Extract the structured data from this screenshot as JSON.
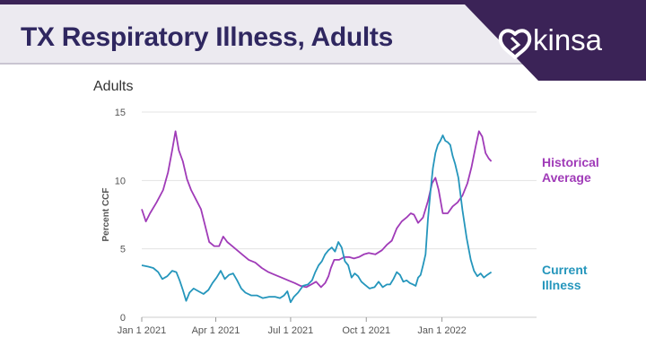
{
  "header": {
    "title": "TX Respiratory Illness, Adults",
    "brand": "kinsa"
  },
  "colors": {
    "historical": "#a03bb8",
    "current": "#2596bc",
    "title_text": "#2f2760",
    "brand_bg": "#3b2357"
  },
  "chart_data": {
    "type": "line",
    "title": "Adults",
    "xlabel": "",
    "ylabel": "Percent CCF",
    "ylim": [
      0,
      15
    ],
    "yticks": [
      0,
      5,
      10,
      15
    ],
    "xlim": [
      0,
      480
    ],
    "xticks": [
      {
        "day": 0,
        "label": "Jan 1 2021"
      },
      {
        "day": 90,
        "label": "Apr 1 2021"
      },
      {
        "day": 181,
        "label": "Jul 1 2021"
      },
      {
        "day": 273,
        "label": "Oct 1 2021"
      },
      {
        "day": 365,
        "label": "Jan 1 2022"
      }
    ],
    "grid": true,
    "series": [
      {
        "name": "Historical Average",
        "label_lines": [
          "Historical",
          "Average"
        ],
        "points": [
          [
            0,
            7.9
          ],
          [
            5,
            7
          ],
          [
            10,
            7.6
          ],
          [
            18,
            8.4
          ],
          [
            26,
            9.3
          ],
          [
            32,
            10.6
          ],
          [
            37,
            12.2
          ],
          [
            41,
            13.6
          ],
          [
            45,
            12.2
          ],
          [
            50,
            11.4
          ],
          [
            55,
            10.1
          ],
          [
            60,
            9.3
          ],
          [
            66,
            8.6
          ],
          [
            72,
            7.9
          ],
          [
            77,
            6.7
          ],
          [
            82,
            5.5
          ],
          [
            88,
            5.2
          ],
          [
            94,
            5.2
          ],
          [
            99,
            5.9
          ],
          [
            104,
            5.5
          ],
          [
            110,
            5.2
          ],
          [
            116,
            4.9
          ],
          [
            122,
            4.6
          ],
          [
            130,
            4.2
          ],
          [
            138,
            4.0
          ],
          [
            146,
            3.6
          ],
          [
            154,
            3.3
          ],
          [
            162,
            3.1
          ],
          [
            170,
            2.9
          ],
          [
            178,
            2.7
          ],
          [
            186,
            2.5
          ],
          [
            193,
            2.3
          ],
          [
            200,
            2.2
          ],
          [
            206,
            2.4
          ],
          [
            212,
            2.6
          ],
          [
            218,
            2.2
          ],
          [
            223,
            2.5
          ],
          [
            227,
            3.0
          ],
          [
            230,
            3.6
          ],
          [
            234,
            4.2
          ],
          [
            240,
            4.2
          ],
          [
            246,
            4.4
          ],
          [
            252,
            4.4
          ],
          [
            258,
            4.3
          ],
          [
            264,
            4.4
          ],
          [
            270,
            4.6
          ],
          [
            276,
            4.7
          ],
          [
            284,
            4.6
          ],
          [
            292,
            4.9
          ],
          [
            298,
            5.3
          ],
          [
            304,
            5.6
          ],
          [
            310,
            6.5
          ],
          [
            316,
            7.0
          ],
          [
            322,
            7.3
          ],
          [
            327,
            7.6
          ],
          [
            331,
            7.5
          ],
          [
            336,
            6.9
          ],
          [
            342,
            7.3
          ],
          [
            348,
            8.5
          ],
          [
            353,
            9.8
          ],
          [
            357,
            10.2
          ],
          [
            361,
            9.3
          ],
          [
            366,
            7.6
          ],
          [
            372,
            7.6
          ],
          [
            378,
            8.1
          ],
          [
            384,
            8.4
          ],
          [
            390,
            8.9
          ],
          [
            396,
            9.8
          ],
          [
            401,
            11
          ],
          [
            406,
            12.5
          ],
          [
            410,
            13.6
          ],
          [
            414,
            13.2
          ],
          [
            418,
            12
          ],
          [
            422,
            11.6
          ],
          [
            425,
            11.4
          ]
        ]
      },
      {
        "name": "Current Illness",
        "label_lines": [
          "Current",
          "Illness"
        ],
        "points": [
          [
            0,
            3.8
          ],
          [
            8,
            3.7
          ],
          [
            14,
            3.6
          ],
          [
            20,
            3.3
          ],
          [
            25,
            2.8
          ],
          [
            31,
            3.0
          ],
          [
            37,
            3.4
          ],
          [
            42,
            3.3
          ],
          [
            46,
            2.7
          ],
          [
            50,
            2.0
          ],
          [
            54,
            1.2
          ],
          [
            58,
            1.8
          ],
          [
            63,
            2.1
          ],
          [
            69,
            1.9
          ],
          [
            75,
            1.7
          ],
          [
            81,
            2.0
          ],
          [
            86,
            2.5
          ],
          [
            91,
            2.9
          ],
          [
            96,
            3.4
          ],
          [
            101,
            2.8
          ],
          [
            106,
            3.1
          ],
          [
            111,
            3.2
          ],
          [
            116,
            2.7
          ],
          [
            121,
            2.1
          ],
          [
            126,
            1.8
          ],
          [
            133,
            1.6
          ],
          [
            140,
            1.6
          ],
          [
            147,
            1.4
          ],
          [
            155,
            1.5
          ],
          [
            162,
            1.5
          ],
          [
            168,
            1.4
          ],
          [
            173,
            1.6
          ],
          [
            177,
            1.9
          ],
          [
            181,
            1.1
          ],
          [
            185,
            1.5
          ],
          [
            190,
            1.8
          ],
          [
            196,
            2.3
          ],
          [
            202,
            2.4
          ],
          [
            207,
            2.7
          ],
          [
            211,
            3.3
          ],
          [
            215,
            3.8
          ],
          [
            219,
            4.1
          ],
          [
            223,
            4.6
          ],
          [
            227,
            4.9
          ],
          [
            231,
            5.1
          ],
          [
            235,
            4.8
          ],
          [
            239,
            5.5
          ],
          [
            243,
            5.1
          ],
          [
            247,
            4.1
          ],
          [
            251,
            3.8
          ],
          [
            255,
            2.9
          ],
          [
            259,
            3.2
          ],
          [
            263,
            3.0
          ],
          [
            267,
            2.6
          ],
          [
            271,
            2.4
          ],
          [
            277,
            2.1
          ],
          [
            283,
            2.2
          ],
          [
            288,
            2.6
          ],
          [
            293,
            2.2
          ],
          [
            298,
            2.4
          ],
          [
            302,
            2.4
          ],
          [
            306,
            2.8
          ],
          [
            310,
            3.3
          ],
          [
            314,
            3.1
          ],
          [
            318,
            2.6
          ],
          [
            322,
            2.7
          ],
          [
            326,
            2.5
          ],
          [
            330,
            2.4
          ],
          [
            333,
            2.3
          ],
          [
            336,
            2.9
          ],
          [
            339,
            3.1
          ],
          [
            342,
            3.8
          ],
          [
            345,
            4.6
          ],
          [
            348,
            7.2
          ],
          [
            351,
            9.2
          ],
          [
            354,
            10.9
          ],
          [
            357,
            12.0
          ],
          [
            360,
            12.6
          ],
          [
            363,
            12.9
          ],
          [
            366,
            13.3
          ],
          [
            369,
            12.9
          ],
          [
            372,
            12.8
          ],
          [
            375,
            12.6
          ],
          [
            378,
            11.8
          ],
          [
            381,
            11.2
          ],
          [
            385,
            10.2
          ],
          [
            390,
            7.8
          ],
          [
            395,
            5.8
          ],
          [
            400,
            4.2
          ],
          [
            404,
            3.4
          ],
          [
            408,
            3.0
          ],
          [
            412,
            3.2
          ],
          [
            416,
            2.9
          ],
          [
            420,
            3.1
          ],
          [
            425,
            3.3
          ]
        ]
      }
    ]
  }
}
